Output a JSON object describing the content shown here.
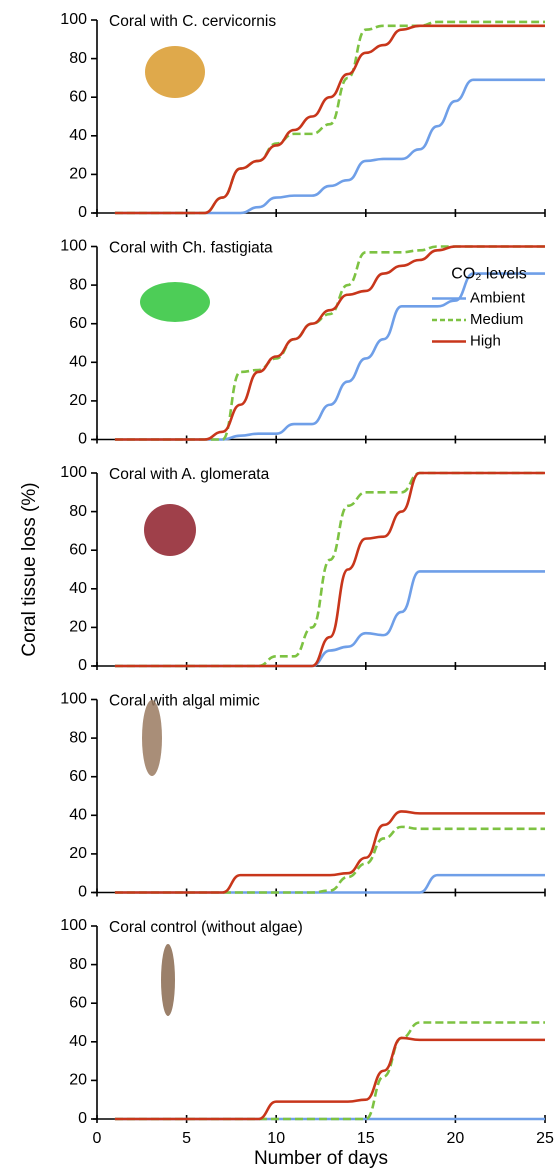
{
  "chart_data": [
    {
      "type": "line",
      "title": "Coral with C. cervicornis",
      "x": [
        1,
        2,
        3,
        4,
        5,
        6,
        7,
        8,
        9,
        10,
        11,
        12,
        13,
        14,
        15,
        16,
        17,
        18,
        19,
        20,
        21,
        22,
        23,
        24,
        25
      ],
      "xlim": [
        0,
        25
      ],
      "xticks": [
        0,
        5,
        10,
        15,
        20,
        25
      ],
      "show_xtick_labels": false,
      "ylim": [
        0,
        100
      ],
      "yticks": [
        0,
        20,
        40,
        60,
        80,
        100
      ],
      "series": [
        {
          "name": "Ambient",
          "color": "#6f9fe8",
          "dashed": false,
          "values": [
            0,
            0,
            0,
            0,
            0,
            0,
            0,
            0,
            3,
            8,
            9,
            9,
            14,
            17,
            27,
            28,
            28,
            33,
            45,
            58,
            69,
            69,
            69,
            69,
            69
          ]
        },
        {
          "name": "Medium",
          "color": "#7dc242",
          "dashed": true,
          "values": [
            0,
            0,
            0,
            0,
            0,
            0,
            8,
            23,
            27,
            36,
            41,
            41,
            46,
            70,
            95,
            97,
            97,
            97,
            99,
            99,
            99,
            99,
            99,
            99,
            99
          ]
        },
        {
          "name": "High",
          "color": "#c8361b",
          "dashed": false,
          "values": [
            0,
            0,
            0,
            0,
            0,
            0,
            8,
            23,
            27,
            35,
            43,
            50,
            60,
            72,
            83,
            87,
            95,
            97,
            97,
            97,
            97,
            97,
            97,
            97,
            97
          ]
        }
      ]
    },
    {
      "type": "line",
      "title": "Coral with Ch. fastigiata",
      "x": [
        1,
        2,
        3,
        4,
        5,
        6,
        7,
        8,
        9,
        10,
        11,
        12,
        13,
        14,
        15,
        16,
        17,
        18,
        19,
        20,
        21,
        22,
        23,
        24,
        25
      ],
      "xlim": [
        0,
        25
      ],
      "xticks": [
        0,
        5,
        10,
        15,
        20,
        25
      ],
      "show_xtick_labels": false,
      "ylim": [
        0,
        100
      ],
      "yticks": [
        0,
        20,
        40,
        60,
        80,
        100
      ],
      "legend": "right",
      "legend_title": "CO₂ levels",
      "series": [
        {
          "name": "Ambient",
          "color": "#6f9fe8",
          "dashed": false,
          "values": [
            0,
            0,
            0,
            0,
            0,
            0,
            0,
            2,
            3,
            3,
            8,
            8,
            18,
            30,
            42,
            52,
            69,
            69,
            69,
            72,
            86,
            86,
            86,
            86,
            86
          ]
        },
        {
          "name": "Medium",
          "color": "#7dc242",
          "dashed": true,
          "values": [
            0,
            0,
            0,
            0,
            0,
            0,
            0,
            35,
            36,
            42,
            52,
            60,
            65,
            80,
            97,
            97,
            97,
            98,
            100,
            100,
            100,
            100,
            100,
            100,
            100
          ]
        },
        {
          "name": "High",
          "color": "#c8361b",
          "dashed": false,
          "values": [
            0,
            0,
            0,
            0,
            0,
            0,
            4,
            18,
            35,
            43,
            52,
            60,
            67,
            75,
            77,
            86,
            90,
            93,
            98,
            100,
            100,
            100,
            100,
            100,
            100
          ]
        }
      ]
    },
    {
      "type": "line",
      "title": "Coral with A. glomerata",
      "ylabel": "Coral tissue loss (%)",
      "x": [
        1,
        2,
        3,
        4,
        5,
        6,
        7,
        8,
        9,
        10,
        11,
        12,
        13,
        14,
        15,
        16,
        17,
        18,
        19,
        20,
        21,
        22,
        23,
        24,
        25
      ],
      "xlim": [
        0,
        25
      ],
      "xticks": [
        0,
        5,
        10,
        15,
        20,
        25
      ],
      "show_xtick_labels": false,
      "ylim": [
        0,
        100
      ],
      "yticks": [
        0,
        20,
        40,
        60,
        80,
        100
      ],
      "series": [
        {
          "name": "Ambient",
          "color": "#6f9fe8",
          "dashed": false,
          "values": [
            0,
            0,
            0,
            0,
            0,
            0,
            0,
            0,
            0,
            0,
            0,
            0,
            8,
            10,
            17,
            16,
            28,
            49,
            49,
            49,
            49,
            49,
            49,
            49,
            49
          ]
        },
        {
          "name": "Medium",
          "color": "#7dc242",
          "dashed": true,
          "values": [
            0,
            0,
            0,
            0,
            0,
            0,
            0,
            0,
            0,
            5,
            5,
            20,
            55,
            83,
            90,
            90,
            90,
            100,
            100,
            100,
            100,
            100,
            100,
            100,
            100
          ]
        },
        {
          "name": "High",
          "color": "#c8361b",
          "dashed": false,
          "values": [
            0,
            0,
            0,
            0,
            0,
            0,
            0,
            0,
            0,
            0,
            0,
            0,
            15,
            50,
            66,
            67,
            80,
            100,
            100,
            100,
            100,
            100,
            100,
            100,
            100
          ]
        }
      ]
    },
    {
      "type": "line",
      "title": "Coral with algal mimic",
      "x": [
        1,
        2,
        3,
        4,
        5,
        6,
        7,
        8,
        9,
        10,
        11,
        12,
        13,
        14,
        15,
        16,
        17,
        18,
        19,
        20,
        21,
        22,
        23,
        24,
        25
      ],
      "xlim": [
        0,
        25
      ],
      "xticks": [
        0,
        5,
        10,
        15,
        20,
        25
      ],
      "show_xtick_labels": false,
      "ylim": [
        0,
        100
      ],
      "yticks": [
        0,
        20,
        40,
        60,
        80,
        100
      ],
      "series": [
        {
          "name": "Ambient",
          "color": "#6f9fe8",
          "dashed": false,
          "values": [
            0,
            0,
            0,
            0,
            0,
            0,
            0,
            0,
            0,
            0,
            0,
            0,
            0,
            0,
            0,
            0,
            0,
            0,
            9,
            9,
            9,
            9,
            9,
            9,
            9
          ]
        },
        {
          "name": "Medium",
          "color": "#7dc242",
          "dashed": true,
          "values": [
            0,
            0,
            0,
            0,
            0,
            0,
            0,
            0,
            0,
            0,
            0,
            0,
            1,
            8,
            15,
            28,
            34,
            33,
            33,
            33,
            33,
            33,
            33,
            33,
            33
          ]
        },
        {
          "name": "High",
          "color": "#c8361b",
          "dashed": false,
          "values": [
            0,
            0,
            0,
            0,
            0,
            0,
            0,
            9,
            9,
            9,
            9,
            9,
            9,
            10,
            18,
            35,
            42,
            41,
            41,
            41,
            41,
            41,
            41,
            41,
            41
          ]
        }
      ]
    },
    {
      "type": "line",
      "title": "Coral control (without algae)",
      "xlabel": "Number of days",
      "x": [
        1,
        2,
        3,
        4,
        5,
        6,
        7,
        8,
        9,
        10,
        11,
        12,
        13,
        14,
        15,
        16,
        17,
        18,
        19,
        20,
        21,
        22,
        23,
        24,
        25
      ],
      "xlim": [
        0,
        25
      ],
      "xticks": [
        0,
        5,
        10,
        15,
        20,
        25
      ],
      "show_xtick_labels": true,
      "ylim": [
        0,
        100
      ],
      "yticks": [
        0,
        20,
        40,
        60,
        80,
        100
      ],
      "series": [
        {
          "name": "Ambient",
          "color": "#6f9fe8",
          "dashed": false,
          "values": [
            0,
            0,
            0,
            0,
            0,
            0,
            0,
            0,
            0,
            0,
            0,
            0,
            0,
            0,
            0,
            0,
            0,
            0,
            0,
            0,
            0,
            0,
            0,
            0,
            0
          ]
        },
        {
          "name": "Medium",
          "color": "#7dc242",
          "dashed": true,
          "values": [
            0,
            0,
            0,
            0,
            0,
            0,
            0,
            0,
            0,
            0,
            0,
            0,
            0,
            0,
            0,
            22,
            42,
            50,
            50,
            50,
            50,
            50,
            50,
            50,
            50
          ]
        },
        {
          "name": "High",
          "color": "#c8361b",
          "dashed": false,
          "values": [
            0,
            0,
            0,
            0,
            0,
            0,
            0,
            0,
            0,
            9,
            9,
            9,
            9,
            9,
            10,
            25,
            42,
            41,
            41,
            41,
            41,
            41,
            41,
            41,
            41
          ]
        }
      ]
    }
  ]
}
